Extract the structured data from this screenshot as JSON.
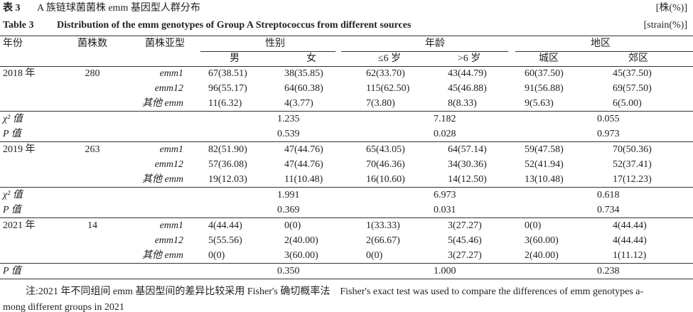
{
  "caption_cn": {
    "label": "表 3",
    "text": "A 族链球菌菌株 emm 基因型人群分布",
    "unit": "[株(%)]"
  },
  "caption_en": {
    "label": "Table 3",
    "text": "Distribution of the emm genotypes of Group A Streptococcus from different sources",
    "unit": "[strain(%)]"
  },
  "header": {
    "row1": [
      "年份",
      "菌株数",
      "菌株亚型",
      "性别",
      "年龄",
      "地区"
    ],
    "row2": [
      "男",
      "女",
      "≤6 岁",
      ">6 岁",
      "城区",
      "郊区"
    ]
  },
  "groups": [
    {
      "year": "2018 年",
      "count": "280",
      "rows": [
        {
          "subtype": "emm1",
          "values": [
            "67(38.51)",
            "38(35.85)",
            "62(33.70)",
            "43(44.79)",
            "60(37.50)",
            "45(37.50)"
          ]
        },
        {
          "subtype": "emm12",
          "values": [
            "96(55.17)",
            "64(60.38)",
            "115(62.50)",
            "45(46.88)",
            "91(56.88)",
            "69(57.50)"
          ]
        },
        {
          "subtype": "其他 emm",
          "values": [
            "11(6.32)",
            "4(3.77)",
            "7(3.80)",
            "8(8.33)",
            "9(5.63)",
            "6(5.00)"
          ]
        }
      ],
      "stats": [
        {
          "label": "χ² 值",
          "values": [
            "1.235",
            "7.182",
            "0.055"
          ]
        },
        {
          "label": "P 值",
          "values": [
            "0.539",
            "0.028",
            "0.973"
          ]
        }
      ]
    },
    {
      "year": "2019 年",
      "count": "263",
      "rows": [
        {
          "subtype": "emm1",
          "values": [
            "82(51.90)",
            "47(44.76)",
            "65(43.05)",
            "64(57.14)",
            "59(47.58)",
            "70(50.36)"
          ]
        },
        {
          "subtype": "emm12",
          "values": [
            "57(36.08)",
            "47(44.76)",
            "70(46.36)",
            "34(30.36)",
            "52(41.94)",
            "52(37.41)"
          ]
        },
        {
          "subtype": "其他 emm",
          "values": [
            "19(12.03)",
            "11(10.48)",
            "16(10.60)",
            "14(12.50)",
            "13(10.48)",
            "17(12.23)"
          ]
        }
      ],
      "stats": [
        {
          "label": "χ² 值",
          "values": [
            "1.991",
            "6.973",
            "0.618"
          ]
        },
        {
          "label": "P 值",
          "values": [
            "0.369",
            "0.031",
            "0.734"
          ]
        }
      ]
    },
    {
      "year": "2021 年",
      "count": "14",
      "rows": [
        {
          "subtype": "emm1",
          "values": [
            "4(44.44)",
            "0(0)",
            "1(33.33)",
            "3(27.27)",
            "0(0)",
            "4(44.44)"
          ]
        },
        {
          "subtype": "emm12",
          "values": [
            "5(55.56)",
            "2(40.00)",
            "2(66.67)",
            "5(45.46)",
            "3(60.00)",
            "4(44.44)"
          ]
        },
        {
          "subtype": "其他 emm",
          "values": [
            "0(0)",
            "3(60.00)",
            "0(0)",
            "3(27.27)",
            "2(40.00)",
            "1(11.12)"
          ]
        }
      ],
      "stats": [
        {
          "label": "P 值",
          "values": [
            "0.350",
            "1.000",
            "0.238"
          ]
        }
      ]
    }
  ],
  "note": [
    "注:2021 年不同组间 emm 基因型间的差异比较采用 Fisher's 确切概率法　Fisher's exact test was used to compare the differences of emm genotypes a-",
    "mong different groups in 2021"
  ]
}
